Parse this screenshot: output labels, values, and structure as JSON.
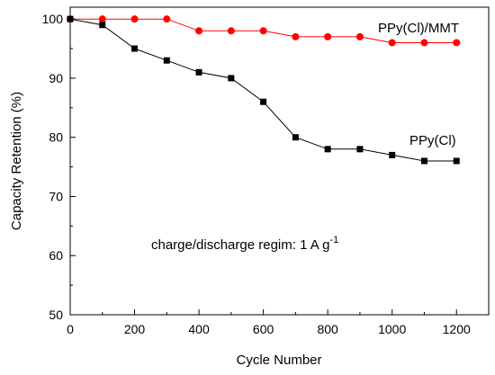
{
  "chart_data": {
    "type": "line",
    "xlabel": "Cycle Number",
    "ylabel": "Capacity Retention (%)",
    "xlim": [
      0,
      1300
    ],
    "ylim": [
      50,
      102
    ],
    "x_ticks": [
      0,
      200,
      400,
      600,
      800,
      1000,
      1200
    ],
    "y_ticks": [
      50,
      60,
      70,
      80,
      90,
      100
    ],
    "grid": false,
    "annotation": {
      "text": "charge/discharge regim: 1 A g",
      "superscript": "-1"
    },
    "series": [
      {
        "name": "PPy(Cl)/MMT",
        "color": "#ff0000",
        "marker": "circle",
        "x": [
          0,
          100,
          200,
          300,
          400,
          500,
          600,
          700,
          800,
          900,
          1000,
          1100,
          1200
        ],
        "y": [
          100,
          100,
          100,
          100,
          98,
          98,
          98,
          97,
          97,
          97,
          96,
          96,
          96
        ]
      },
      {
        "name": "PPy(Cl)",
        "color": "#000000",
        "marker": "square",
        "x": [
          0,
          100,
          200,
          300,
          400,
          500,
          600,
          700,
          800,
          900,
          1000,
          1100,
          1200
        ],
        "y": [
          100,
          99,
          95,
          93,
          91,
          90,
          86,
          80,
          78,
          78,
          77,
          76,
          76
        ]
      }
    ]
  }
}
